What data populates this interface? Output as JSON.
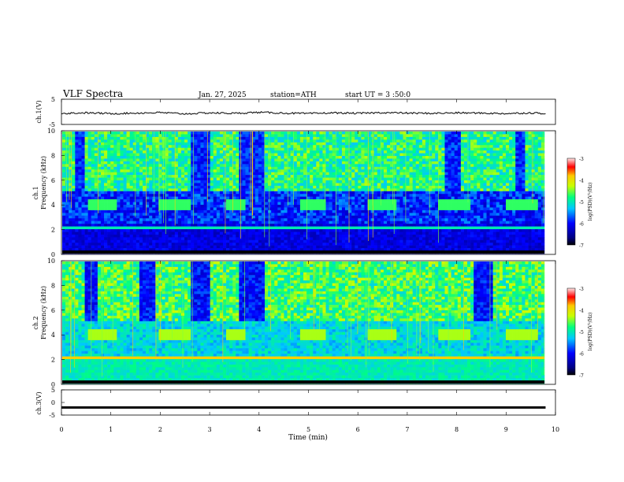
{
  "header": {
    "title": "VLF  Spectra",
    "date": "Jan. 27, 2025",
    "station": "station=ATH",
    "start_ut": "start  UT  =   3  :50:0"
  },
  "chart_data": [
    {
      "type": "line",
      "id": "ch1-waveform",
      "ylabel": "ch.1(V)",
      "ylim": [
        -5,
        5
      ],
      "yticks": [
        "5",
        "-5"
      ],
      "xlim": [
        0,
        10
      ],
      "series": [
        {
          "x": [
            0.0,
            0.5,
            1.0,
            1.5,
            2.0,
            2.5,
            3.0,
            3.5,
            4.0,
            4.5,
            5.0,
            5.5,
            6.0,
            6.5,
            7.0,
            7.5,
            8.0,
            8.5,
            9.0,
            9.5,
            9.8
          ],
          "y": [
            -0.6,
            -0.4,
            -0.7,
            -0.5,
            -0.3,
            -0.8,
            -0.4,
            -0.6,
            -0.2,
            -0.5,
            -0.7,
            -0.4,
            -0.6,
            -0.3,
            -0.5,
            -0.6,
            -0.4,
            -0.5,
            -0.7,
            -0.4,
            -0.6
          ]
        }
      ],
      "color": "#000000"
    },
    {
      "type": "heatmap",
      "id": "ch1-spectrogram",
      "ylabel": "ch.1\nFrequency (kHz)",
      "ylim": [
        0,
        10
      ],
      "yticks": [
        "0",
        "2",
        "4",
        "6",
        "8",
        "10"
      ],
      "xlim": [
        0,
        10
      ],
      "colorbar": {
        "label": "log(PSD)(V²/Hz)",
        "range": [
          -7,
          -3
        ],
        "ticks": [
          "-3",
          "-4",
          "-5",
          "-6",
          "-7"
        ]
      }
    },
    {
      "type": "heatmap",
      "id": "ch2-spectrogram",
      "ylabel": "ch.2\nFrequency (kHz)",
      "ylim": [
        0,
        10
      ],
      "yticks": [
        "0",
        "2",
        "4",
        "6",
        "8",
        "10"
      ],
      "xlim": [
        0,
        10
      ],
      "colorbar": {
        "label": "log(PSD)(V²/Hz)",
        "range": [
          -7,
          -3
        ],
        "ticks": [
          "-3",
          "-4",
          "-5",
          "-6",
          "-7"
        ]
      }
    },
    {
      "type": "line",
      "id": "ch3-waveform",
      "ylabel": "ch.3(V)",
      "ylim": [
        -5,
        5
      ],
      "yticks": [
        "5",
        "0",
        "-5"
      ],
      "xlim": [
        0,
        10
      ],
      "xlabel": "Time  (min)",
      "xticks": [
        "0",
        "1",
        "2",
        "3",
        "4",
        "5",
        "6",
        "7",
        "8",
        "9",
        "10"
      ],
      "series": [
        {
          "x": [
            0.0,
            9.8
          ],
          "y": [
            -2.0,
            -2.0
          ]
        }
      ],
      "color": "#000000"
    }
  ],
  "labels": {
    "ch1_wave": "ch.1(V)",
    "ch1_spec_a": "ch.1",
    "ch1_spec_b": "Frequency (kHz)",
    "ch2_spec_a": "ch.2",
    "ch2_spec_b": "Frequency (kHz)",
    "ch3_wave": "ch.3(V)",
    "xlabel": "Time  (min)",
    "colorbar_label": "log(PSD)(V²/Hz)"
  }
}
